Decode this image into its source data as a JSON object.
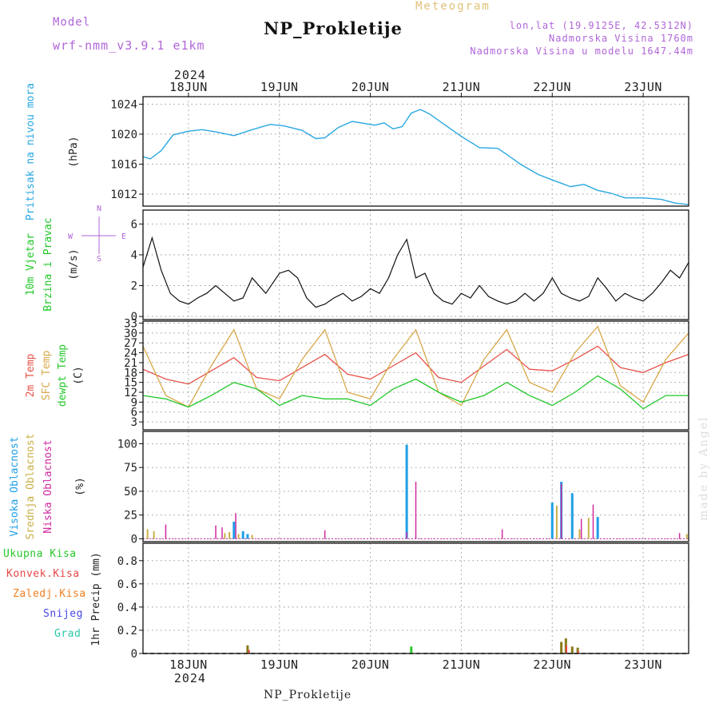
{
  "header": {
    "model_label": "Model",
    "model_name": "wrf-nmm_v3.9.1 e1km",
    "title": "NP_Prokletije",
    "subtitle": "Meteogram",
    "coords": "lon,lat (19.9125E, 42.5312N)",
    "altitude": "Nadmorska Visina 1760m",
    "model_altitude": "Nadmorska Visina u modelu 1647.44m"
  },
  "footer": {
    "station": "NP_Prokletije",
    "credit": "made by Angel"
  },
  "colors": {
    "pressure": "#2aa8e0",
    "temp2m": "#e8524a",
    "sfc": "#d8a84a",
    "dew": "#22c82a",
    "high": "#1ea0e6",
    "mid": "#c8b048",
    "low": "#d02aa0",
    "total": "#2ac82a",
    "convective": "#e84848",
    "freezing": "#f08020",
    "snow": "#4848e8",
    "hail": "#2ac8a8",
    "windspeed": "#111111"
  },
  "axis": {
    "year": "2024",
    "day_labels": [
      "18JUN",
      "19JUN",
      "20JUN",
      "21JUN",
      "22JUN",
      "23JUN"
    ],
    "day_positions": [
      0.5,
      1.5,
      2.5,
      3.5,
      4.5,
      5.5
    ]
  },
  "chart_data": [
    {
      "type": "line",
      "name": "pressure",
      "ylabel": [
        "Pritisak na nivou mora",
        "(hPa)"
      ],
      "yticks": [
        1012,
        1016,
        1020,
        1024
      ],
      "ylim": [
        1010.4,
        1025.0
      ],
      "x": [
        0,
        0.08,
        0.2,
        0.33,
        0.5,
        0.65,
        0.8,
        1.0,
        1.2,
        1.4,
        1.55,
        1.75,
        1.9,
        2.0,
        2.15,
        2.3,
        2.45,
        2.55,
        2.65,
        2.75,
        2.85,
        2.95,
        3.05,
        3.15,
        3.3,
        3.5,
        3.7,
        3.9,
        4.0,
        4.15,
        4.35,
        4.5,
        4.7,
        4.85,
        5.0,
        5.15,
        5.3,
        5.5,
        5.7,
        5.85,
        6.0
      ],
      "y": [
        1017.0,
        1016.7,
        1017.8,
        1019.9,
        1020.4,
        1020.6,
        1020.3,
        1019.8,
        1020.6,
        1021.3,
        1021.1,
        1020.5,
        1019.4,
        1019.5,
        1020.9,
        1021.7,
        1021.4,
        1021.2,
        1021.5,
        1020.7,
        1021.0,
        1022.8,
        1023.3,
        1022.7,
        1021.4,
        1019.7,
        1018.2,
        1018.1,
        1017.3,
        1016.0,
        1014.6,
        1013.9,
        1013.0,
        1013.3,
        1012.5,
        1012.1,
        1011.5,
        1011.5,
        1011.3,
        1010.8,
        1010.6
      ]
    },
    {
      "type": "line",
      "name": "wind",
      "ylabel": [
        "10m Vjetar",
        "Brzina i Pravac",
        "(m/s)"
      ],
      "compass": [
        "N",
        "W",
        "E",
        "S"
      ],
      "yticks": [
        0,
        2,
        4,
        6
      ],
      "ylim": [
        -0.2,
        6.9
      ],
      "x": [
        0,
        0.1,
        0.2,
        0.3,
        0.4,
        0.5,
        0.6,
        0.7,
        0.8,
        0.9,
        1.0,
        1.1,
        1.2,
        1.35,
        1.5,
        1.6,
        1.7,
        1.8,
        1.9,
        2.0,
        2.1,
        2.2,
        2.3,
        2.4,
        2.5,
        2.6,
        2.7,
        2.8,
        2.9,
        3.0,
        3.1,
        3.2,
        3.3,
        3.4,
        3.5,
        3.6,
        3.7,
        3.8,
        3.9,
        4.0,
        4.1,
        4.2,
        4.3,
        4.4,
        4.5,
        4.6,
        4.7,
        4.8,
        4.9,
        5.0,
        5.1,
        5.2,
        5.3,
        5.4,
        5.5,
        5.6,
        5.7,
        5.8,
        5.9,
        6.0
      ],
      "y": [
        3.2,
        5.1,
        3.0,
        1.5,
        1.0,
        0.8,
        1.2,
        1.5,
        2.0,
        1.5,
        1.0,
        1.2,
        2.5,
        1.5,
        2.8,
        3.0,
        2.5,
        1.2,
        0.6,
        0.8,
        1.2,
        1.5,
        1.0,
        1.3,
        1.8,
        1.5,
        2.5,
        4.0,
        5.0,
        2.5,
        2.8,
        1.5,
        1.0,
        0.8,
        1.5,
        1.2,
        2.0,
        1.3,
        1.0,
        0.8,
        1.0,
        1.5,
        1.0,
        1.5,
        2.5,
        1.5,
        1.2,
        1.0,
        1.3,
        2.5,
        1.8,
        1.0,
        1.5,
        1.2,
        1.0,
        1.5,
        2.2,
        3.0,
        2.5,
        3.5
      ]
    },
    {
      "type": "line",
      "name": "temperature",
      "ylabel": [
        "2m Temp",
        "SFC Temp",
        "dewpt Temp",
        "(C)"
      ],
      "yticks": [
        3,
        6,
        9,
        12,
        15,
        18,
        21,
        24,
        27,
        30,
        33
      ],
      "ylim": [
        0.6,
        33.6
      ],
      "x": [
        0,
        0.25,
        0.5,
        0.75,
        1.0,
        1.25,
        1.5,
        1.75,
        2.0,
        2.25,
        2.5,
        2.75,
        3.0,
        3.25,
        3.5,
        3.75,
        4.0,
        4.25,
        4.5,
        4.75,
        5.0,
        5.25,
        5.5,
        5.75,
        6.0
      ],
      "series": [
        {
          "name": "2m Temp",
          "values": [
            19,
            16,
            14.5,
            18.5,
            22.5,
            16.5,
            15.5,
            19.5,
            23.5,
            17.5,
            16,
            20,
            24,
            16.5,
            15,
            20,
            25,
            19,
            18.5,
            22,
            26,
            19.5,
            18,
            21,
            23.5
          ]
        },
        {
          "name": "SFC Temp",
          "values": [
            26,
            11,
            7.5,
            20,
            31,
            13,
            10,
            22,
            31,
            12,
            10,
            22,
            31,
            12,
            8,
            22,
            31,
            15,
            12,
            24,
            32,
            14,
            9,
            22,
            30
          ]
        },
        {
          "name": "dewpt Temp",
          "values": [
            11,
            10,
            7.5,
            11,
            15,
            13,
            8,
            11,
            10,
            10,
            8,
            13,
            16,
            12,
            9,
            11,
            15,
            11,
            8,
            12,
            17,
            13,
            7,
            11,
            11
          ]
        }
      ]
    },
    {
      "type": "bar",
      "name": "cloud",
      "ylabel": [
        "Visoka Oblacnost",
        "Srednja Oblacnost",
        "Niska Oblacnost",
        "(%)"
      ],
      "yticks": [
        0,
        25,
        50,
        75,
        100
      ],
      "ylim": [
        -3,
        113
      ],
      "series": [
        {
          "name": "Visoka Oblacnost",
          "x": [
            1.0,
            1.1,
            1.15,
            2.9,
            4.5,
            4.6,
            4.72,
            5.0
          ],
          "values": [
            18,
            8,
            5,
            99,
            38,
            60,
            48,
            23
          ]
        },
        {
          "name": "Srednja Oblacnost",
          "x": [
            0.05,
            0.12,
            0.9,
            0.95,
            1.05,
            1.2,
            4.55,
            4.8,
            4.9,
            5.98
          ],
          "values": [
            10,
            8,
            6,
            7,
            5,
            4,
            35,
            10,
            22,
            5
          ]
        },
        {
          "name": "Niska Oblacnost",
          "x": [
            0.25,
            0.8,
            0.87,
            1.02,
            2.0,
            2.9,
            3.0,
            3.95,
            4.6,
            4.82,
            4.95,
            5.9
          ],
          "values": [
            15,
            14,
            12,
            27,
            9,
            7,
            60,
            10,
            58,
            21,
            36,
            6
          ]
        }
      ]
    },
    {
      "type": "bar",
      "name": "precipitation",
      "ylabel": [
        "1hr Precip (mm)"
      ],
      "legend": [
        "Ukupna Kisa",
        "Konvek.Kisa",
        "Zaledj.Kisa",
        "Snijeg",
        "Grad"
      ],
      "yticks": [
        0,
        0.2,
        0.4,
        0.6,
        0.8
      ],
      "ylim": [
        0,
        0.95
      ],
      "series": [
        {
          "name": "Ukupna Kisa",
          "x": [
            1.15,
            2.95,
            4.6,
            4.65,
            4.72,
            4.78
          ],
          "values": [
            0.07,
            0.06,
            0.1,
            0.13,
            0.06,
            0.05
          ]
        },
        {
          "name": "Konvek.Kisa",
          "x": [
            1.14,
            4.63,
            4.76
          ],
          "values": [
            0.03,
            0.07,
            0.02
          ]
        }
      ]
    }
  ]
}
